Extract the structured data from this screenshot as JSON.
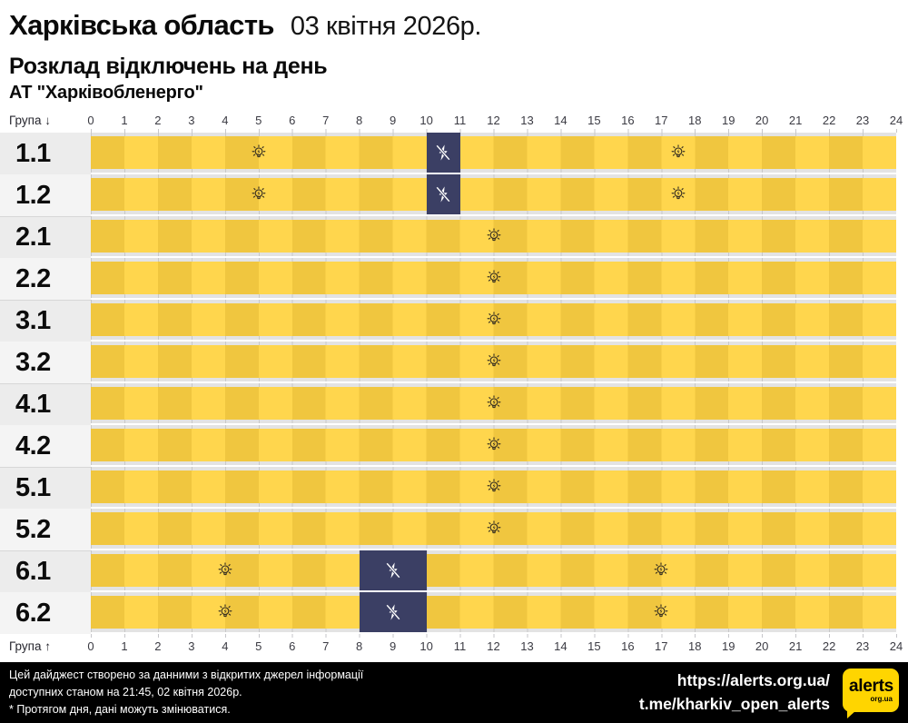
{
  "header": {
    "region": "Харківська область",
    "date": "03 квітня 2026р.",
    "subtitle": "Розклад відключень на день",
    "company": "АТ \"Харківобленерго\""
  },
  "axis": {
    "group_label_top": "Група ↓",
    "group_label_bottom": "Група ↑"
  },
  "icons": {
    "power_on_marker": "lightbulb-icon",
    "power_off_marker": "crossed-lightning-icon"
  },
  "colors": {
    "bar_yellow_dark": "#f0c63f",
    "bar_yellow_light": "#ffd64d",
    "outage_navy": "#3b3f64",
    "track_gray": "#e3e3e3",
    "gridline": "#c8c8c8",
    "label_bg_a": "#ececec",
    "label_bg_b": "#f4f4f4",
    "bulb_stroke": "#3a3222",
    "footer_bg": "#000000",
    "logo_yellow": "#ffd500"
  },
  "chart_data": {
    "type": "heatmap",
    "title": "Розклад відключень на день",
    "region": "Харківська область",
    "date": "03 квітня 2026р.",
    "x_axis": {
      "min": 0,
      "max": 24,
      "tick_step": 1
    },
    "y_categories": [
      "1.1",
      "1.2",
      "2.1",
      "2.2",
      "3.1",
      "3.2",
      "4.1",
      "4.2",
      "5.1",
      "5.2",
      "6.1",
      "6.2"
    ],
    "cell_semantics": {
      "yellow": "power-on",
      "navy": "power-off-outage"
    },
    "rows": [
      {
        "group": "1.1",
        "outages": [
          {
            "start": 10,
            "end": 11
          }
        ],
        "bulb_hours": [
          5,
          17.5
        ]
      },
      {
        "group": "1.2",
        "outages": [
          {
            "start": 10,
            "end": 11
          }
        ],
        "bulb_hours": [
          5,
          17.5
        ]
      },
      {
        "group": "2.1",
        "outages": [],
        "bulb_hours": [
          12
        ]
      },
      {
        "group": "2.2",
        "outages": [],
        "bulb_hours": [
          12
        ]
      },
      {
        "group": "3.1",
        "outages": [],
        "bulb_hours": [
          12
        ]
      },
      {
        "group": "3.2",
        "outages": [],
        "bulb_hours": [
          12
        ]
      },
      {
        "group": "4.1",
        "outages": [],
        "bulb_hours": [
          12
        ]
      },
      {
        "group": "4.2",
        "outages": [],
        "bulb_hours": [
          12
        ]
      },
      {
        "group": "5.1",
        "outages": [],
        "bulb_hours": [
          12
        ]
      },
      {
        "group": "5.2",
        "outages": [],
        "bulb_hours": [
          12
        ]
      },
      {
        "group": "6.1",
        "outages": [
          {
            "start": 8,
            "end": 10
          }
        ],
        "bulb_hours": [
          4,
          17
        ]
      },
      {
        "group": "6.2",
        "outages": [
          {
            "start": 8,
            "end": 10
          }
        ],
        "bulb_hours": [
          4,
          17
        ]
      }
    ]
  },
  "footer": {
    "note_line1": "Цей дайджест створено за данними з відкритих джерел інформації",
    "note_line2": "доступних станом на 21:45, 02 квітня 2026р.",
    "note_line3": "* Протягом дня, дані можуть змінюватися.",
    "link1": "https://alerts.org.ua/",
    "link2": "t.me/kharkiv_open_alerts",
    "logo_text": "alerts",
    "logo_sub": "org.ua"
  }
}
